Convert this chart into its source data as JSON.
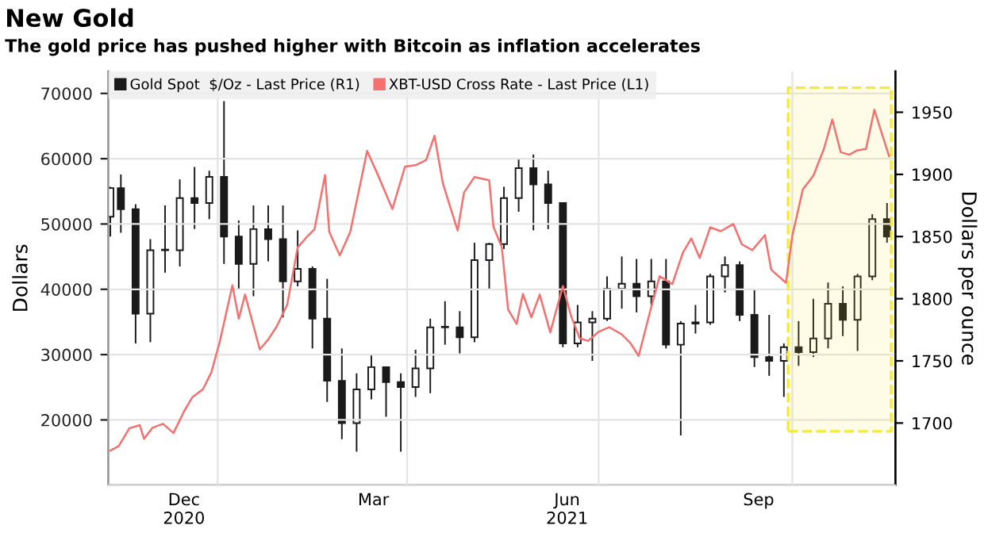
{
  "chart_data": {
    "type": "line",
    "title": "New Gold",
    "subtitle": "The gold price has pushed higher with Bitcoin as inflation accelerates",
    "ylabel": "Dollars",
    "y2label": "Dollars per ounce",
    "xlim": [
      "2020-11-10",
      "2021-11-19"
    ],
    "xticks": [
      {
        "value": "2020-12-16",
        "label": "Dec\n2020"
      },
      {
        "value": "2021-01-01",
        "label": null
      },
      {
        "value": "2021-03-16",
        "label": "Mar"
      },
      {
        "value": "2021-04-01",
        "label": null
      },
      {
        "value": "2021-06-16",
        "label": "Jun\n2021"
      },
      {
        "value": "2021-07-01",
        "label": null
      },
      {
        "value": "2021-09-15",
        "label": "Sep"
      },
      {
        "value": "2021-10-01",
        "label": null
      }
    ],
    "ylim": [
      10000,
      73400
    ],
    "yticks": [
      20000,
      30000,
      40000,
      50000,
      60000,
      70000
    ],
    "y2lim": [
      1650,
      1983
    ],
    "y2ticks": [
      1700,
      1750,
      1800,
      1850,
      1900,
      1950
    ],
    "grid": true,
    "legend": "top left",
    "bands": [
      {
        "axis": "x",
        "from": "2021-09-29",
        "to": "2021-11-17",
        "color": "#f5e93a"
      }
    ],
    "series": [
      {
        "name": "XBT-USD Cross Rate - Last Price (L1)",
        "color": "#f4716f",
        "x": [
          "2020-11-11",
          "2020-11-15",
          "2020-11-20",
          "2020-11-25",
          "2020-11-27",
          "2020-12-01",
          "2020-12-06",
          "2020-12-11",
          "2020-12-16",
          "2020-12-20",
          "2020-12-25",
          "2020-12-29",
          "2021-01-02",
          "2021-01-08",
          "2021-01-11",
          "2021-01-14",
          "2021-01-21",
          "2021-01-25",
          "2021-01-29",
          "2021-02-03",
          "2021-02-08",
          "2021-02-12",
          "2021-02-16",
          "2021-02-21",
          "2021-02-23",
          "2021-02-28",
          "2021-03-05",
          "2021-03-13",
          "2021-03-18",
          "2021-03-25",
          "2021-03-31",
          "2021-04-05",
          "2021-04-10",
          "2021-04-14",
          "2021-04-18",
          "2021-04-25",
          "2021-04-28",
          "2021-05-03",
          "2021-05-10",
          "2021-05-12",
          "2021-05-16",
          "2021-05-19",
          "2021-05-23",
          "2021-05-26",
          "2021-05-30",
          "2021-06-03",
          "2021-06-08",
          "2021-06-14",
          "2021-06-18",
          "2021-06-22",
          "2021-06-26",
          "2021-07-01",
          "2021-07-06",
          "2021-07-12",
          "2021-07-16",
          "2021-07-20",
          "2021-07-26",
          "2021-07-30",
          "2021-08-05",
          "2021-08-10",
          "2021-08-14",
          "2021-08-18",
          "2021-08-23",
          "2021-08-28",
          "2021-09-03",
          "2021-09-07",
          "2021-09-12",
          "2021-09-18",
          "2021-09-21",
          "2021-09-28",
          "2021-10-01",
          "2021-10-06",
          "2021-10-11",
          "2021-10-16",
          "2021-10-20",
          "2021-10-24",
          "2021-10-28",
          "2021-11-01",
          "2021-11-05",
          "2021-11-09",
          "2021-11-12",
          "2021-11-16"
        ],
        "values": [
          15300,
          16000,
          18700,
          19200,
          17100,
          18800,
          19400,
          18000,
          21300,
          23500,
          24700,
          27300,
          32000,
          40600,
          35500,
          39200,
          30800,
          32300,
          34300,
          37600,
          46400,
          47900,
          49200,
          57500,
          48800,
          45200,
          48800,
          61200,
          57600,
          52300,
          58800,
          59000,
          59800,
          63500,
          56200,
          49000,
          54800,
          57200,
          56700,
          49600,
          46400,
          36900,
          34700,
          39300,
          35700,
          39200,
          33400,
          40500,
          35800,
          32500,
          32100,
          33500,
          34200,
          33100,
          31800,
          29800,
          37300,
          42000,
          40800,
          45600,
          47800,
          44800,
          49500,
          48900,
          50000,
          46900,
          46000,
          48300,
          43000,
          41000,
          48200,
          55300,
          57400,
          61500,
          66000,
          61000,
          60600,
          61300,
          61500,
          67500,
          64400,
          60400
        ]
      },
      {
        "name": "Gold Spot  $/Oz - Last Price (R1)",
        "type": "candlestick",
        "axis": "y2",
        "color": "#1a1a1a",
        "x": [
          "2020-11-11",
          "2020-11-16",
          "2020-11-23",
          "2020-11-30",
          "2020-12-07",
          "2020-12-14",
          "2020-12-21",
          "2020-12-28",
          "2021-01-04",
          "2021-01-11",
          "2021-01-18",
          "2021-01-25",
          "2021-02-01",
          "2021-02-08",
          "2021-02-15",
          "2021-02-22",
          "2021-03-01",
          "2021-03-08",
          "2021-03-15",
          "2021-03-22",
          "2021-03-29",
          "2021-04-05",
          "2021-04-12",
          "2021-04-19",
          "2021-04-26",
          "2021-05-03",
          "2021-05-10",
          "2021-05-17",
          "2021-05-24",
          "2021-05-31",
          "2021-06-07",
          "2021-06-14",
          "2021-06-21",
          "2021-06-28",
          "2021-07-05",
          "2021-07-12",
          "2021-07-19",
          "2021-07-26",
          "2021-08-02",
          "2021-08-09",
          "2021-08-16",
          "2021-08-23",
          "2021-08-30",
          "2021-09-06",
          "2021-09-13",
          "2021-09-20",
          "2021-09-27",
          "2021-10-04",
          "2021-10-11",
          "2021-10-18",
          "2021-10-25",
          "2021-11-01",
          "2021-11-08",
          "2021-11-15"
        ],
        "ohlc": [
          [
            1866,
            1890,
            1850,
            1889
          ],
          [
            1889,
            1900,
            1853,
            1872
          ],
          [
            1872,
            1876,
            1764,
            1788
          ],
          [
            1788,
            1848,
            1765,
            1839
          ],
          [
            1839,
            1875,
            1821,
            1839
          ],
          [
            1839,
            1896,
            1826,
            1881
          ],
          [
            1881,
            1906,
            1856,
            1877
          ],
          [
            1877,
            1903,
            1864,
            1898
          ],
          [
            1898,
            1959,
            1828,
            1850
          ],
          [
            1850,
            1863,
            1808,
            1828
          ],
          [
            1828,
            1875,
            1802,
            1856
          ],
          [
            1856,
            1875,
            1830,
            1848
          ],
          [
            1848,
            1875,
            1785,
            1814
          ],
          [
            1814,
            1855,
            1810,
            1824
          ],
          [
            1824,
            1826,
            1760,
            1784
          ],
          [
            1784,
            1816,
            1717,
            1734
          ],
          [
            1734,
            1760,
            1687,
            1700
          ],
          [
            1700,
            1740,
            1677,
            1727
          ],
          [
            1727,
            1755,
            1719,
            1745
          ],
          [
            1745,
            1745,
            1705,
            1733
          ],
          [
            1733,
            1740,
            1677,
            1729
          ],
          [
            1729,
            1759,
            1721,
            1744
          ],
          [
            1744,
            1784,
            1724,
            1777
          ],
          [
            1777,
            1798,
            1763,
            1777
          ],
          [
            1777,
            1790,
            1756,
            1769
          ],
          [
            1769,
            1845,
            1765,
            1831
          ],
          [
            1831,
            1845,
            1808,
            1844
          ],
          [
            1844,
            1890,
            1840,
            1881
          ],
          [
            1881,
            1913,
            1870,
            1905
          ],
          [
            1905,
            1916,
            1855,
            1892
          ],
          [
            1892,
            1903,
            1856,
            1877
          ],
          [
            1877,
            1877,
            1761,
            1764
          ],
          [
            1764,
            1795,
            1761,
            1781
          ],
          [
            1781,
            1790,
            1750,
            1784
          ],
          [
            1784,
            1818,
            1782,
            1808
          ],
          [
            1808,
            1834,
            1792,
            1812
          ],
          [
            1812,
            1832,
            1789,
            1802
          ],
          [
            1802,
            1832,
            1795,
            1814
          ],
          [
            1814,
            1832,
            1760,
            1763
          ],
          [
            1763,
            1782,
            1690,
            1780
          ],
          [
            1780,
            1795,
            1772,
            1781
          ],
          [
            1781,
            1820,
            1779,
            1818
          ],
          [
            1818,
            1834,
            1805,
            1827
          ],
          [
            1827,
            1830,
            1782,
            1787
          ],
          [
            1787,
            1808,
            1745,
            1753
          ],
          [
            1753,
            1787,
            1738,
            1750
          ],
          [
            1750,
            1764,
            1721,
            1761
          ],
          [
            1761,
            1782,
            1746,
            1757
          ],
          [
            1757,
            1800,
            1753,
            1768
          ],
          [
            1768,
            1813,
            1760,
            1796
          ],
          [
            1796,
            1810,
            1770,
            1783
          ],
          [
            1783,
            1820,
            1758,
            1818
          ],
          [
            1818,
            1868,
            1815,
            1864
          ],
          [
            1864,
            1877,
            1845,
            1850
          ]
        ]
      }
    ]
  }
}
